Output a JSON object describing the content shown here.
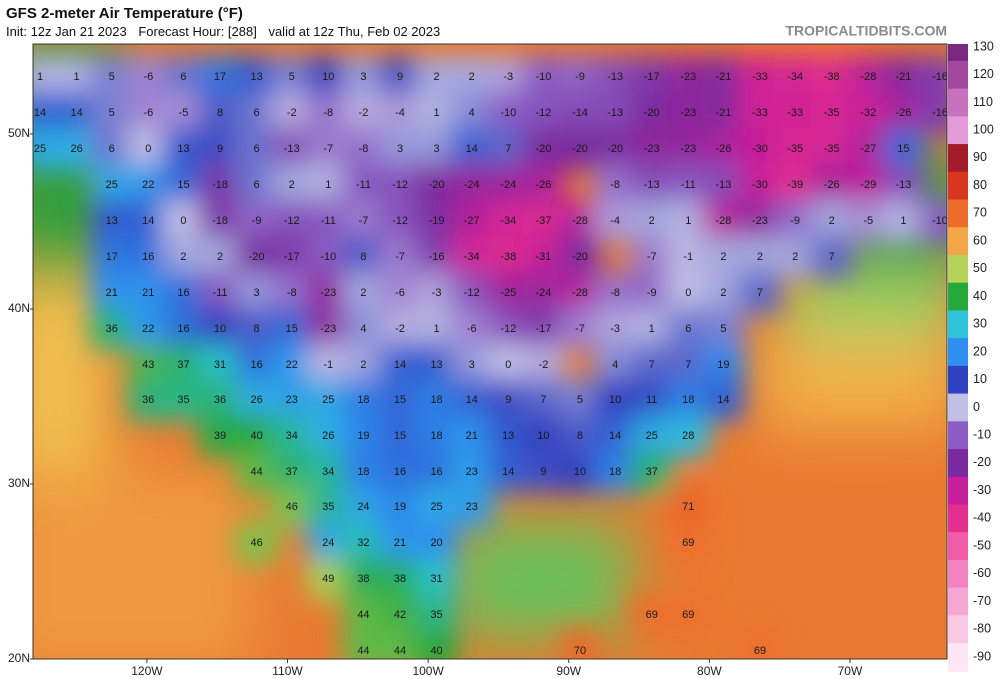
{
  "chart_data": {
    "type": "map",
    "title": "GFS 2-meter Air Temperature (°F)",
    "init": "Init: 12z Jan 21 2023",
    "forecast_hour": "Forecast Hour: [288]",
    "valid": "valid at 12z Thu, Feb 02 2023",
    "credit": "TROPICALTIDBITS.COM",
    "xlim": [
      -128.1,
      -63.1
    ],
    "ylim": [
      20,
      55.14
    ],
    "xticks": [
      {
        "value": -120,
        "label": "120W"
      },
      {
        "value": -110,
        "label": "110W"
      },
      {
        "value": -100,
        "label": "100W"
      },
      {
        "value": -90,
        "label": "90W"
      },
      {
        "value": -80,
        "label": "80W"
      },
      {
        "value": -70,
        "label": "70W"
      }
    ],
    "yticks": [
      {
        "value": 20,
        "label": "20N"
      },
      {
        "value": 30,
        "label": "30N"
      },
      {
        "value": 40,
        "label": "40N"
      },
      {
        "value": 50,
        "label": "50N"
      }
    ],
    "colorbar": {
      "ticks": [
        130,
        120,
        110,
        100,
        90,
        80,
        70,
        60,
        50,
        40,
        30,
        20,
        10,
        0,
        -10,
        -20,
        -30,
        -40,
        -50,
        -60,
        -70,
        -80,
        -90
      ],
      "colors": [
        "#7a2a7e",
        "#a2479d",
        "#c771be",
        "#e29bd6",
        "#a31c2c",
        "#d8361f",
        "#ec6a2a",
        "#f4a545",
        "#b5d35a",
        "#27a83a",
        "#2cc4d8",
        "#2f8ef0",
        "#3041c0",
        "#c2c0e6",
        "#8a5cc4",
        "#7a2aa0",
        "#c81e9a",
        "#e4308e",
        "#f05aa8",
        "#f382c0",
        "#f6a8d4",
        "#f9c8e4",
        "#fce6f3"
      ]
    },
    "lons": [
      -127.6,
      -125.0,
      -122.5,
      -119.9,
      -117.4,
      -114.8,
      -112.2,
      -109.7,
      -107.1,
      -104.6,
      -102.0,
      -99.4,
      -96.9,
      -94.3,
      -91.8,
      -89.2,
      -86.7,
      -84.1,
      -81.5,
      -79.0,
      -76.4,
      -73.9,
      -71.3,
      -68.7,
      -66.2,
      -63.6
    ],
    "lats": [
      53.26,
      51.2,
      49.14,
      47.09,
      45.03,
      42.97,
      40.91,
      38.86,
      36.8,
      34.8,
      32.74,
      30.69,
      28.69,
      26.63,
      24.57,
      22.51,
      20.46
    ],
    "values": [
      [
        1,
        1,
        5,
        -6,
        6,
        17,
        13,
        5,
        10,
        3,
        9,
        2,
        2,
        -3,
        -10,
        -9,
        -13,
        -17,
        -23,
        -21,
        -33,
        -34,
        -38,
        -28,
        -21,
        -16
      ],
      [
        14,
        14,
        5,
        -6,
        -5,
        8,
        6,
        -2,
        -8,
        -2,
        -4,
        1,
        4,
        -10,
        -12,
        -14,
        -13,
        -20,
        -23,
        -21,
        -33,
        -33,
        -35,
        -32,
        -26,
        -16
      ],
      [
        25,
        26,
        6,
        0,
        13,
        9,
        6,
        -13,
        -7,
        -8,
        3,
        3,
        14,
        7,
        -20,
        -20,
        -20,
        -23,
        -23,
        -26,
        -30,
        -35,
        -35,
        -27,
        15,
        null
      ],
      [
        null,
        null,
        25,
        22,
        15,
        -18,
        6,
        2,
        1,
        -11,
        -12,
        -20,
        -24,
        -24,
        -26,
        null,
        -8,
        -13,
        -11,
        -13,
        -30,
        -39,
        -26,
        -29,
        -13,
        null
      ],
      [
        null,
        null,
        13,
        14,
        0,
        -18,
        -9,
        -12,
        -11,
        -7,
        -12,
        -19,
        -27,
        -34,
        -37,
        -28,
        -4,
        2,
        1,
        -28,
        -23,
        -9,
        2,
        -5,
        1,
        -10
      ],
      [
        null,
        null,
        17,
        16,
        2,
        2,
        -20,
        -17,
        -10,
        8,
        -7,
        -16,
        -34,
        -38,
        -31,
        -20,
        null,
        -7,
        -1,
        2,
        2,
        2,
        7,
        null,
        null,
        null
      ],
      [
        null,
        null,
        21,
        21,
        16,
        -11,
        3,
        -8,
        -23,
        2,
        -6,
        -3,
        -12,
        -25,
        -24,
        -28,
        -8,
        -9,
        0,
        2,
        7,
        null,
        null,
        null,
        null,
        null
      ],
      [
        null,
        null,
        36,
        22,
        16,
        10,
        8,
        15,
        -23,
        4,
        -2,
        1,
        -6,
        -12,
        -17,
        -7,
        -3,
        1,
        6,
        5,
        null,
        null,
        null,
        null,
        null,
        null
      ],
      [
        null,
        null,
        null,
        43,
        37,
        31,
        16,
        22,
        -1,
        2,
        14,
        13,
        3,
        0,
        -2,
        null,
        4,
        7,
        7,
        19,
        null,
        null,
        null,
        null,
        null,
        null
      ],
      [
        null,
        null,
        null,
        36,
        35,
        36,
        26,
        23,
        25,
        18,
        15,
        18,
        14,
        9,
        7,
        5,
        10,
        11,
        18,
        14,
        null,
        null,
        null,
        null,
        null,
        null
      ],
      [
        null,
        null,
        null,
        null,
        null,
        39,
        40,
        34,
        26,
        19,
        15,
        18,
        21,
        13,
        10,
        8,
        14,
        25,
        28,
        null,
        null,
        null,
        null,
        null,
        null,
        null
      ],
      [
        null,
        null,
        null,
        null,
        null,
        null,
        44,
        37,
        34,
        18,
        16,
        16,
        23,
        14,
        9,
        10,
        18,
        37,
        null,
        null,
        null,
        null,
        null,
        null,
        null,
        null
      ],
      [
        null,
        null,
        null,
        null,
        null,
        null,
        null,
        46,
        35,
        24,
        19,
        25,
        23,
        null,
        null,
        null,
        null,
        null,
        71,
        null,
        null,
        null,
        null,
        null,
        null,
        null
      ],
      [
        null,
        null,
        null,
        null,
        null,
        null,
        46,
        null,
        24,
        32,
        21,
        20,
        null,
        null,
        null,
        null,
        null,
        null,
        69,
        null,
        null,
        null,
        null,
        null,
        null,
        null
      ],
      [
        null,
        null,
        null,
        null,
        null,
        null,
        null,
        null,
        49,
        38,
        38,
        31,
        null,
        null,
        null,
        null,
        null,
        null,
        null,
        null,
        null,
        null,
        null,
        null,
        null,
        null
      ],
      [
        null,
        null,
        null,
        null,
        null,
        null,
        null,
        null,
        null,
        44,
        42,
        35,
        null,
        null,
        null,
        null,
        null,
        69,
        69,
        null,
        null,
        null,
        null,
        null,
        null,
        null
      ],
      [
        null,
        null,
        null,
        null,
        null,
        null,
        null,
        null,
        null,
        44,
        44,
        40,
        null,
        null,
        null,
        70,
        null,
        null,
        null,
        null,
        69,
        null,
        null,
        null,
        null,
        null
      ]
    ]
  }
}
